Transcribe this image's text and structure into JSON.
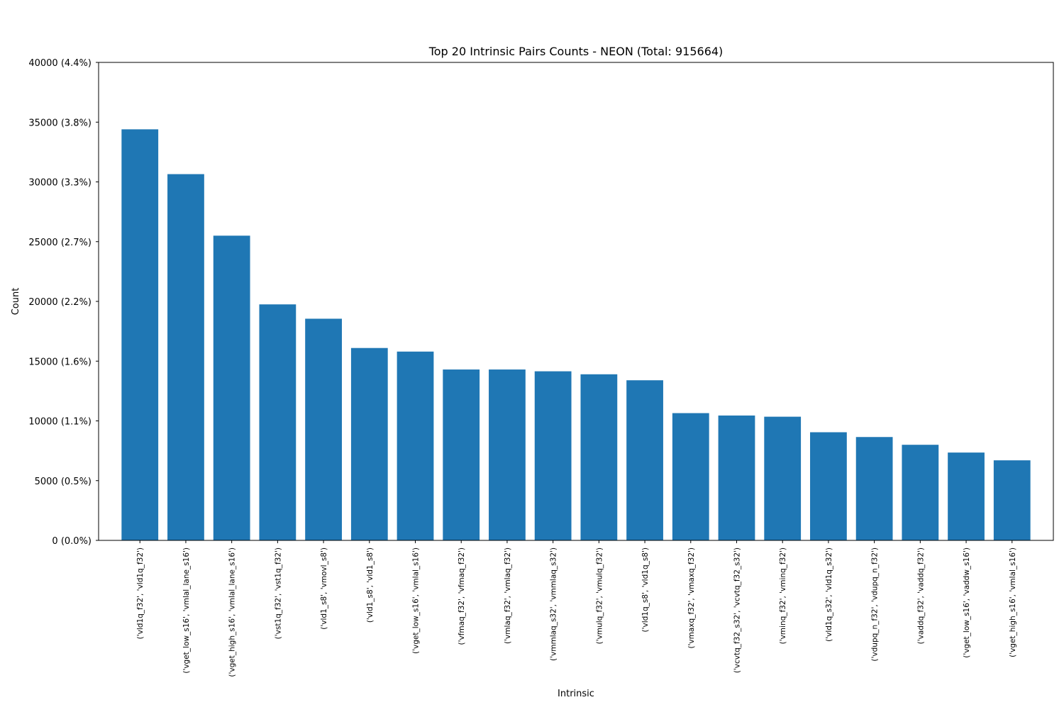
{
  "chart_data": {
    "type": "bar",
    "title": "Top 20 Intrinsic Pairs Counts - NEON (Total: 915664)",
    "xlabel": "Intrinsic",
    "ylabel": "Count",
    "ylim": [
      0,
      40000
    ],
    "grid": false,
    "color": "#1f77b4",
    "categories": [
      "('vld1q_f32', 'vld1q_f32')",
      "('vget_low_s16', 'vmlal_lane_s16')",
      "('vget_high_s16', 'vmlal_lane_s16')",
      "('vst1q_f32', 'vst1q_f32')",
      "('vld1_s8', 'vmovl_s8')",
      "('vld1_s8', 'vld1_s8')",
      "('vget_low_s16', 'vmlal_s16')",
      "('vfmaq_f32', 'vfmaq_f32')",
      "('vmlaq_f32', 'vmlaq_f32')",
      "('vmmlaq_s32', 'vmmlaq_s32')",
      "('vmulq_f32', 'vmulq_f32')",
      "('vld1q_s8', 'vld1q_s8')",
      "('vmaxq_f32', 'vmaxq_f32')",
      "('vcvtq_f32_s32', 'vcvtq_f32_s32')",
      "('vminq_f32', 'vminq_f32')",
      "('vld1q_s32', 'vld1q_s32')",
      "('vdupq_n_f32', 'vdupq_n_f32')",
      "('vaddq_f32', 'vaddq_f32')",
      "('vget_low_s16', 'vaddw_s16')",
      "('vget_high_s16', 'vmlal_s16')"
    ],
    "values": [
      34400,
      30650,
      25500,
      19750,
      18550,
      16100,
      15800,
      14300,
      14300,
      14150,
      13900,
      13400,
      10650,
      10450,
      10350,
      9050,
      8650,
      8000,
      7350,
      6700
    ],
    "yticks": [
      {
        "value": 0,
        "label": "0 (0.0%)"
      },
      {
        "value": 5000,
        "label": "5000 (0.5%)"
      },
      {
        "value": 10000,
        "label": "10000 (1.1%)"
      },
      {
        "value": 15000,
        "label": "15000 (1.6%)"
      },
      {
        "value": 20000,
        "label": "20000 (2.2%)"
      },
      {
        "value": 25000,
        "label": "25000 (2.7%)"
      },
      {
        "value": 30000,
        "label": "30000 (3.3%)"
      },
      {
        "value": 35000,
        "label": "35000 (3.8%)"
      },
      {
        "value": 40000,
        "label": "40000 (4.4%)"
      }
    ]
  }
}
